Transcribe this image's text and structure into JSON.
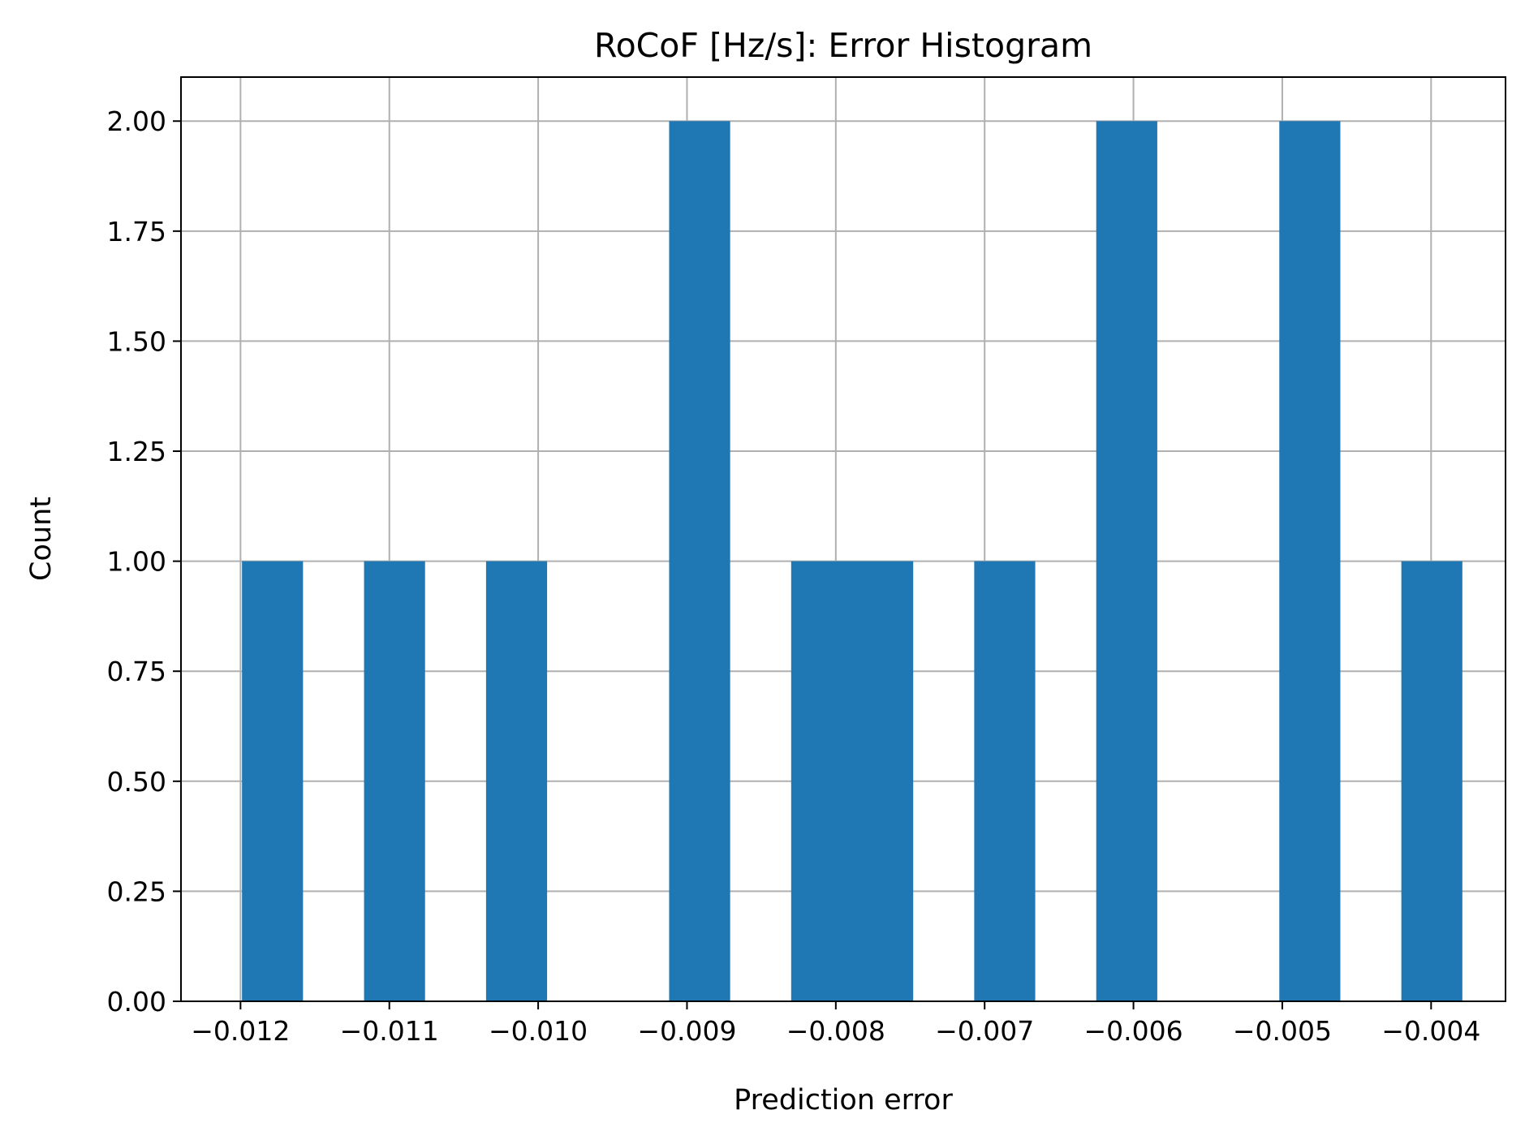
{
  "chart_data": {
    "type": "bar",
    "title": "RoCoF [Hz/s]: Error Histogram",
    "xlabel": "Prediction error",
    "ylabel": "Count",
    "xlim": [
      -0.0124,
      -0.0035
    ],
    "ylim": [
      0,
      2.1
    ],
    "grid": true,
    "bar_color": "#1f77b4",
    "grid_color": "#b0b0b0",
    "x_ticks": [
      -0.012,
      -0.011,
      -0.01,
      -0.009,
      -0.008,
      -0.007,
      -0.006,
      -0.005,
      -0.004
    ],
    "x_tick_labels": [
      "−0.012",
      "−0.011",
      "−0.010",
      "−0.009",
      "−0.008",
      "−0.007",
      "−0.006",
      "−0.005",
      "−0.004"
    ],
    "y_ticks": [
      0,
      0.25,
      0.5,
      0.75,
      1.0,
      1.25,
      1.5,
      1.75,
      2.0
    ],
    "y_tick_labels": [
      "0.00",
      "0.25",
      "0.50",
      "0.75",
      "1.00",
      "1.25",
      "1.50",
      "1.75",
      "2.00"
    ],
    "bins": [
      {
        "x0": -0.01199,
        "x1": -0.01158,
        "count": 1
      },
      {
        "x0": -0.01117,
        "x1": -0.01076,
        "count": 1
      },
      {
        "x0": -0.01035,
        "x1": -0.00994,
        "count": 1
      },
      {
        "x0": -0.00912,
        "x1": -0.00871,
        "count": 2
      },
      {
        "x0": -0.0083,
        "x1": -0.00789,
        "count": 1
      },
      {
        "x0": -0.00789,
        "x1": -0.00748,
        "count": 1
      },
      {
        "x0": -0.00707,
        "x1": -0.00666,
        "count": 1
      },
      {
        "x0": -0.00625,
        "x1": -0.00584,
        "count": 2
      },
      {
        "x0": -0.00502,
        "x1": -0.00461,
        "count": 2
      },
      {
        "x0": -0.0042,
        "x1": -0.00379,
        "count": 1
      }
    ]
  }
}
